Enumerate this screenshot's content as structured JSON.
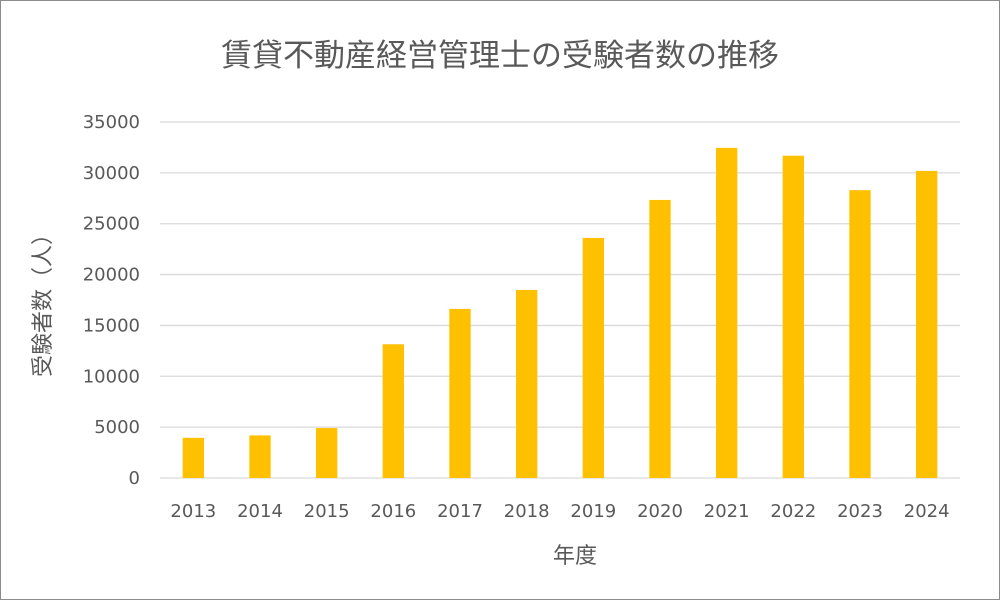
{
  "chart_data": {
    "type": "bar",
    "title": "賃貸不動産経営管理士の受験者数の推移",
    "xlabel": "年度",
    "ylabel": "受験者数（人）",
    "categories": [
      "2013",
      "2014",
      "2015",
      "2016",
      "2017",
      "2018",
      "2019",
      "2020",
      "2021",
      "2022",
      "2023",
      "2024"
    ],
    "series": [
      {
        "values": [
          3953,
          4188,
          4908,
          13149,
          16624,
          18488,
          23605,
          27338,
          32459,
          31687,
          28299,
          30194
        ]
      }
    ],
    "ylim": [
      0,
      35000
    ],
    "yticks": [
      0,
      5000,
      10000,
      15000,
      20000,
      25000,
      30000,
      35000
    ],
    "grid": true,
    "legend": "none",
    "bar_color": "#FFC000"
  }
}
